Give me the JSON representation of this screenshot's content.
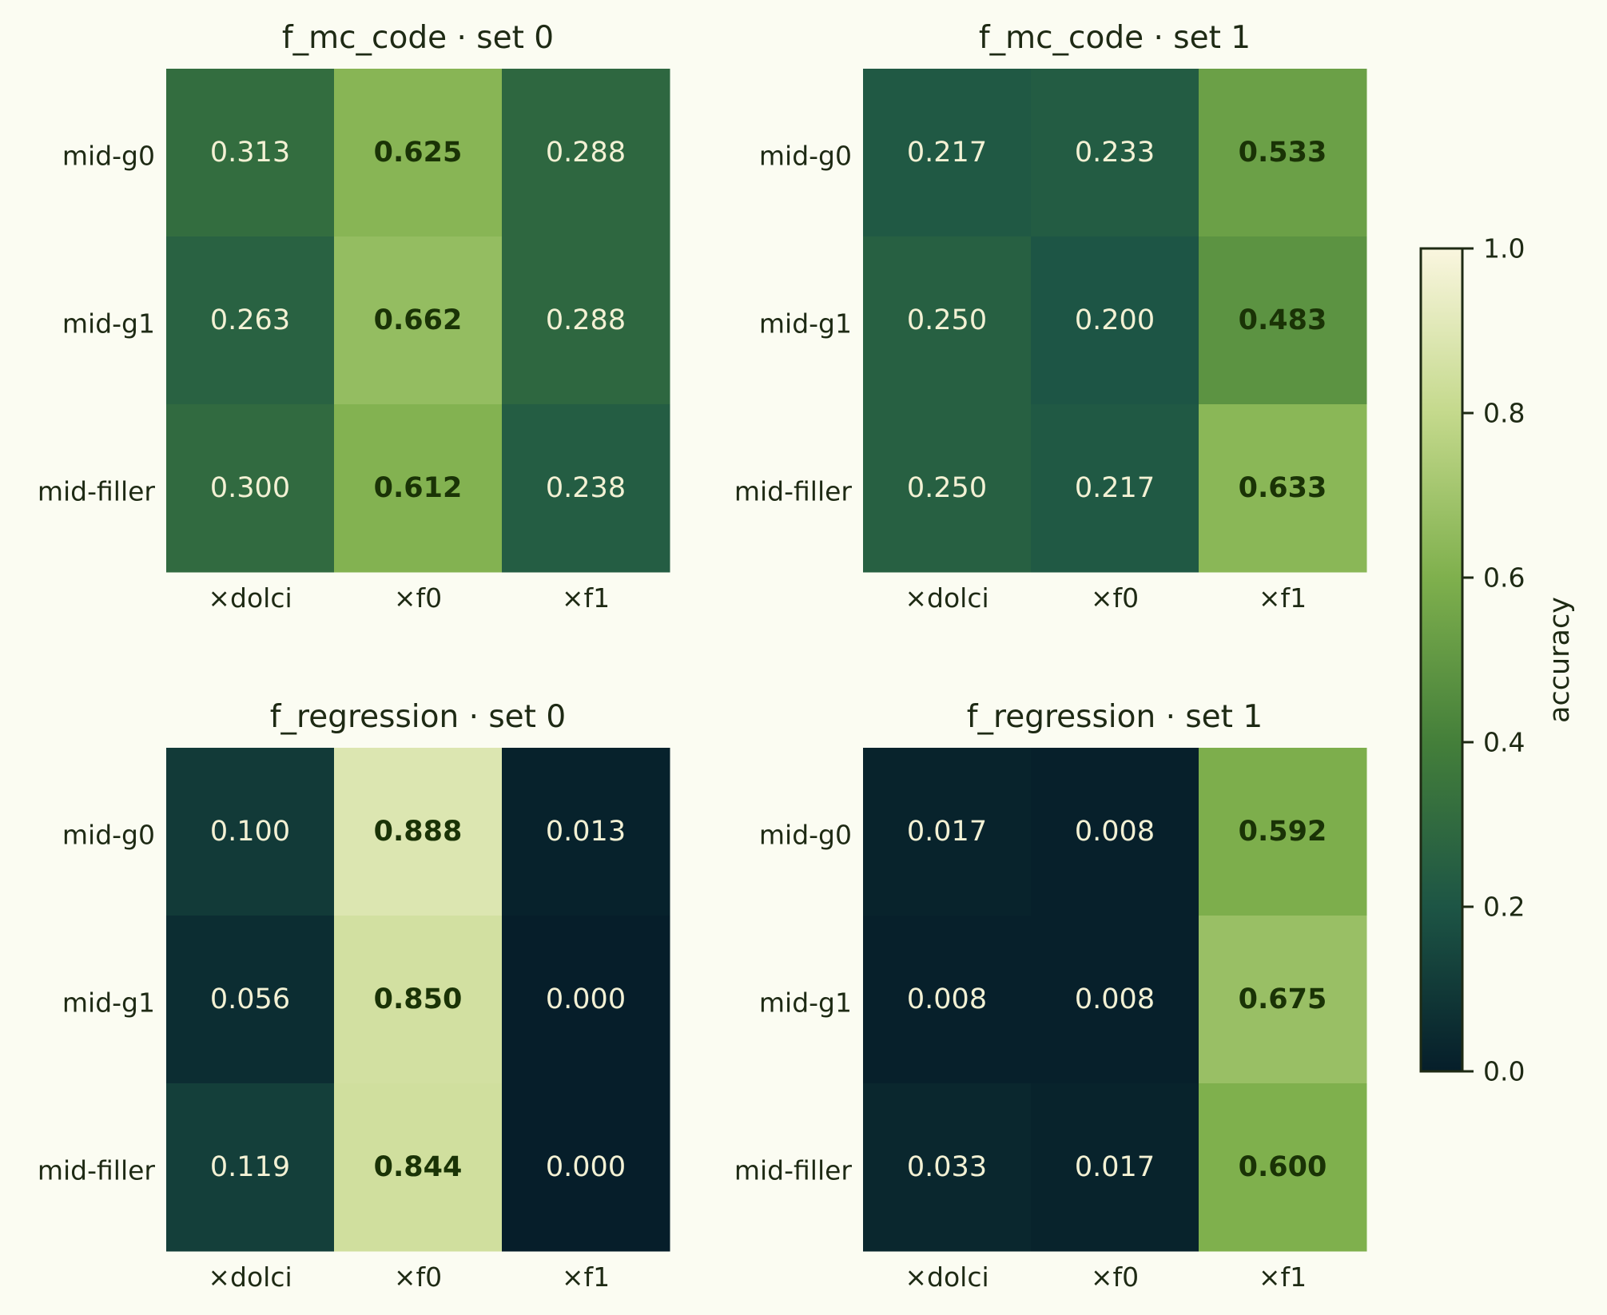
{
  "chart_data": [
    {
      "type": "heatmap",
      "title": "f_mc_code · set 0",
      "rows": [
        "mid-g0",
        "mid-g1",
        "mid-filler"
      ],
      "columns": [
        "×dolci",
        "×f0",
        "×f1"
      ],
      "values": [
        [
          0.313,
          0.625,
          0.288
        ],
        [
          0.263,
          0.662,
          0.288
        ],
        [
          0.3,
          0.612,
          0.238
        ]
      ],
      "value_labels": [
        [
          "0.313",
          "0.625",
          "0.288"
        ],
        [
          "0.263",
          "0.662",
          "0.288"
        ],
        [
          "0.300",
          "0.612",
          "0.238"
        ]
      ],
      "highlight_bold": [
        [
          false,
          true,
          false
        ],
        [
          false,
          true,
          false
        ],
        [
          false,
          true,
          false
        ]
      ]
    },
    {
      "type": "heatmap",
      "title": "f_mc_code · set 1",
      "rows": [
        "mid-g0",
        "mid-g1",
        "mid-filler"
      ],
      "columns": [
        "×dolci",
        "×f0",
        "×f1"
      ],
      "values": [
        [
          0.217,
          0.233,
          0.533
        ],
        [
          0.25,
          0.2,
          0.483
        ],
        [
          0.25,
          0.217,
          0.633
        ]
      ],
      "value_labels": [
        [
          "0.217",
          "0.233",
          "0.533"
        ],
        [
          "0.250",
          "0.200",
          "0.483"
        ],
        [
          "0.250",
          "0.217",
          "0.633"
        ]
      ],
      "highlight_bold": [
        [
          false,
          false,
          true
        ],
        [
          false,
          false,
          true
        ],
        [
          false,
          false,
          true
        ]
      ]
    },
    {
      "type": "heatmap",
      "title": "f_regression · set 0",
      "rows": [
        "mid-g0",
        "mid-g1",
        "mid-filler"
      ],
      "columns": [
        "×dolci",
        "×f0",
        "×f1"
      ],
      "values": [
        [
          0.1,
          0.888,
          0.013
        ],
        [
          0.056,
          0.85,
          0.0
        ],
        [
          0.119,
          0.844,
          0.0
        ]
      ],
      "value_labels": [
        [
          "0.100",
          "0.888",
          "0.013"
        ],
        [
          "0.056",
          "0.850",
          "0.000"
        ],
        [
          "0.119",
          "0.844",
          "0.000"
        ]
      ],
      "highlight_bold": [
        [
          false,
          true,
          false
        ],
        [
          false,
          true,
          false
        ],
        [
          false,
          true,
          false
        ]
      ]
    },
    {
      "type": "heatmap",
      "title": "f_regression · set 1",
      "rows": [
        "mid-g0",
        "mid-g1",
        "mid-filler"
      ],
      "columns": [
        "×dolci",
        "×f0",
        "×f1"
      ],
      "values": [
        [
          0.017,
          0.008,
          0.592
        ],
        [
          0.008,
          0.008,
          0.675
        ],
        [
          0.033,
          0.017,
          0.6
        ]
      ],
      "value_labels": [
        [
          "0.017",
          "0.008",
          "0.592"
        ],
        [
          "0.008",
          "0.008",
          "0.675"
        ],
        [
          "0.033",
          "0.017",
          "0.600"
        ]
      ],
      "highlight_bold": [
        [
          false,
          false,
          true
        ],
        [
          false,
          false,
          true
        ],
        [
          false,
          false,
          true
        ]
      ]
    }
  ],
  "colorbar": {
    "label": "accuracy",
    "range": [
      0,
      1
    ],
    "ticks": [
      "0.0",
      "0.2",
      "0.4",
      "0.6",
      "0.8",
      "1.0"
    ],
    "colormap": "dark-teal to green to cream",
    "color_stops": [
      "#061e2a",
      "#1d5545",
      "#447f3a",
      "#7fb04d",
      "#c4d98c",
      "#faf6df"
    ]
  },
  "colors": {
    "background": "#fbfcf2",
    "text": "#1e2a14",
    "light_text": "#f3f1d4",
    "bold_text": "#1a3306"
  }
}
